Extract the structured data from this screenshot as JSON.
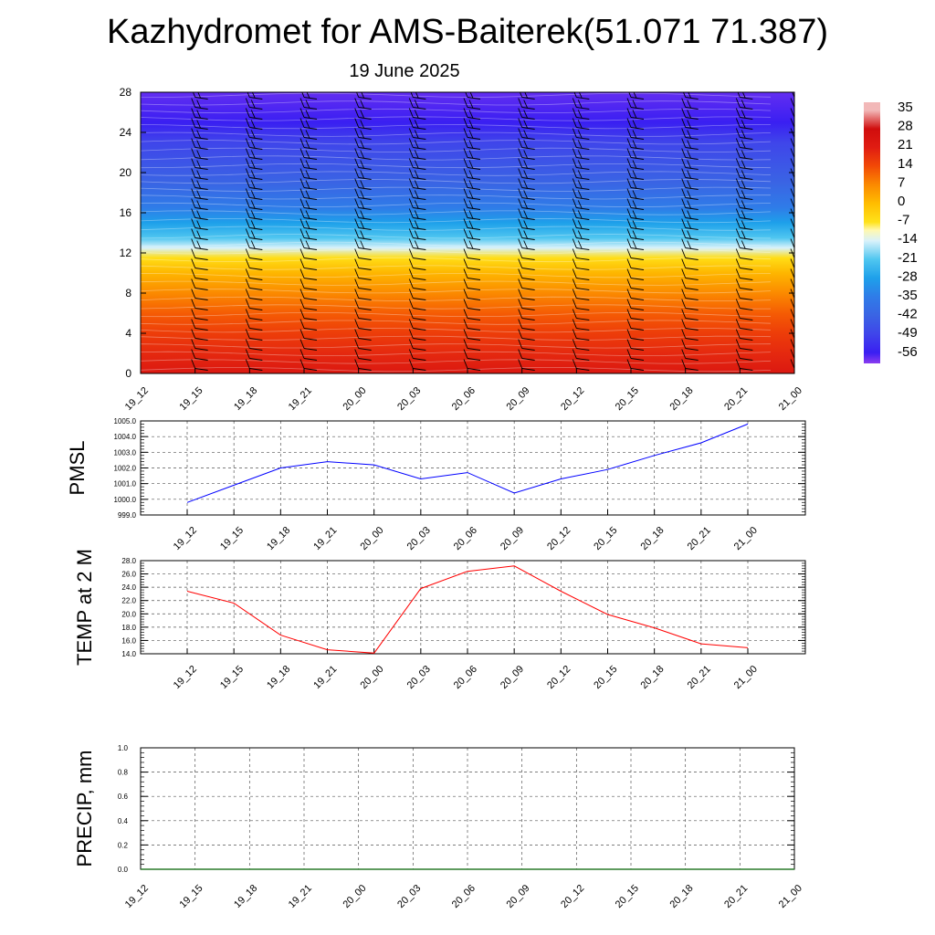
{
  "header": {
    "title": "Kazhydromet for AMS-Baiterek(51.071 71.387)",
    "subtitle": "19 June 2025"
  },
  "chart_data": [
    {
      "type": "heatmap",
      "title": "",
      "xlabel": "",
      "ylabel": "",
      "x_ticks": [
        "19_12",
        "19_15",
        "19_18",
        "19_21",
        "20_00",
        "20_03",
        "20_06",
        "20_09",
        "20_12",
        "20_15",
        "20_18",
        "20_21",
        "21_00"
      ],
      "y_ticks": [
        "0",
        "4",
        "8",
        "12",
        "16",
        "20",
        "24",
        "28"
      ],
      "ylim": [
        0,
        28
      ],
      "colorbar": {
        "labels": [
          "35",
          "28",
          "21",
          "14",
          "7",
          "0",
          "-7",
          "-14",
          "-21",
          "-28",
          "-35",
          "-42",
          "-49",
          "-56"
        ],
        "stops": [
          {
            "v": 35,
            "c": "#f2b8b8"
          },
          {
            "v": 28,
            "c": "#d00d0d"
          },
          {
            "v": 21,
            "c": "#e01c12"
          },
          {
            "v": 14,
            "c": "#f24a06"
          },
          {
            "v": 7,
            "c": "#fb8a00"
          },
          {
            "v": 0,
            "c": "#ffbd00"
          },
          {
            "v": -7,
            "c": "#ffe21a"
          },
          {
            "v": -10,
            "c": "#fff8b0"
          },
          {
            "v": -14,
            "c": "#d9f2fb"
          },
          {
            "v": -21,
            "c": "#4fc6f0"
          },
          {
            "v": -28,
            "c": "#1ea0ea"
          },
          {
            "v": -35,
            "c": "#2f7ce8"
          },
          {
            "v": -42,
            "c": "#3a64e4"
          },
          {
            "v": -49,
            "c": "#3f45ea"
          },
          {
            "v": -56,
            "c": "#3a1ff2"
          },
          {
            "v": -60,
            "c": "#8b3cf0"
          }
        ]
      },
      "temperature_profile": [
        {
          "y": 0,
          "t": 23
        },
        {
          "y": 2,
          "t": 19
        },
        {
          "y": 4,
          "t": 16
        },
        {
          "y": 6,
          "t": 12
        },
        {
          "y": 8,
          "t": 7
        },
        {
          "y": 10,
          "t": 1
        },
        {
          "y": 11.5,
          "t": -6
        },
        {
          "y": 12.5,
          "t": -14
        },
        {
          "y": 13.5,
          "t": -21
        },
        {
          "y": 15,
          "t": -28
        },
        {
          "y": 16.5,
          "t": -35
        },
        {
          "y": 19,
          "t": -42
        },
        {
          "y": 23,
          "t": -49
        },
        {
          "y": 25,
          "t": -56
        },
        {
          "y": 28,
          "t": -58
        }
      ],
      "wind_barb_heights": [
        0.5,
        1.5,
        2.5,
        3.5,
        4.5,
        5.5,
        6.5,
        7.5,
        8.5,
        9.5,
        10.5,
        11.5,
        12.5,
        13.5,
        14.5,
        15.5,
        16.5,
        17.5,
        18.5,
        19.5,
        20.5,
        21.5,
        22.5,
        23.5,
        24.5,
        25.5,
        26.5,
        27.5
      ],
      "wind_barb_columns": [
        "19_15",
        "19_18",
        "19_21",
        "20_00",
        "20_03",
        "20_06",
        "20_09",
        "20_12",
        "20_15",
        "20_18",
        "20_21",
        "21_00"
      ]
    },
    {
      "type": "line",
      "title": "",
      "ylabel": "PMSL",
      "x": [
        "19_12",
        "19_15",
        "19_18",
        "19_21",
        "20_00",
        "20_03",
        "20_06",
        "20_09",
        "20_12",
        "20_15",
        "20_18",
        "20_21",
        "21_00"
      ],
      "y_ticks": [
        "999.0",
        "1000.0",
        "1001.0",
        "1002.0",
        "1003.0",
        "1004.0",
        "1005.0"
      ],
      "ylim": [
        999.0,
        1005.0
      ],
      "grid": true,
      "series": [
        {
          "color": "#0000ff",
          "values": [
            999.8,
            1000.9,
            1002.0,
            1002.4,
            1002.2,
            1001.3,
            1001.7,
            1000.4,
            1001.3,
            1001.9,
            1002.8,
            1003.6,
            1004.8
          ]
        }
      ]
    },
    {
      "type": "line",
      "title": "",
      "ylabel": "TEMP at 2 M",
      "x": [
        "19_12",
        "19_15",
        "19_18",
        "19_21",
        "20_00",
        "20_03",
        "20_06",
        "20_09",
        "20_12",
        "20_15",
        "20_18",
        "20_21",
        "21_00"
      ],
      "y_ticks": [
        "14.0",
        "16.0",
        "18.0",
        "20.0",
        "22.0",
        "24.0",
        "26.0",
        "28.0"
      ],
      "ylim": [
        14.0,
        28.0
      ],
      "grid": true,
      "series": [
        {
          "color": "#ff0000",
          "values": [
            23.4,
            21.6,
            16.8,
            14.6,
            14.1,
            23.8,
            26.4,
            27.2,
            23.4,
            19.9,
            17.9,
            15.5,
            14.9
          ]
        }
      ]
    },
    {
      "type": "line",
      "title": "",
      "ylabel": "PRECIP, mm",
      "x": [
        "19_12",
        "19_15",
        "19_18",
        "19_21",
        "20_00",
        "20_03",
        "20_06",
        "20_09",
        "20_12",
        "20_15",
        "20_18",
        "20_21",
        "21_00"
      ],
      "y_ticks": [
        "0.0",
        "0.2",
        "0.4",
        "0.6",
        "0.8",
        "1.0"
      ],
      "ylim": [
        0.0,
        1.0
      ],
      "grid": true,
      "series": [
        {
          "color": "#2a7a2a",
          "values": [
            0,
            0,
            0,
            0,
            0,
            0,
            0,
            0,
            0,
            0,
            0,
            0,
            0
          ]
        }
      ]
    }
  ]
}
